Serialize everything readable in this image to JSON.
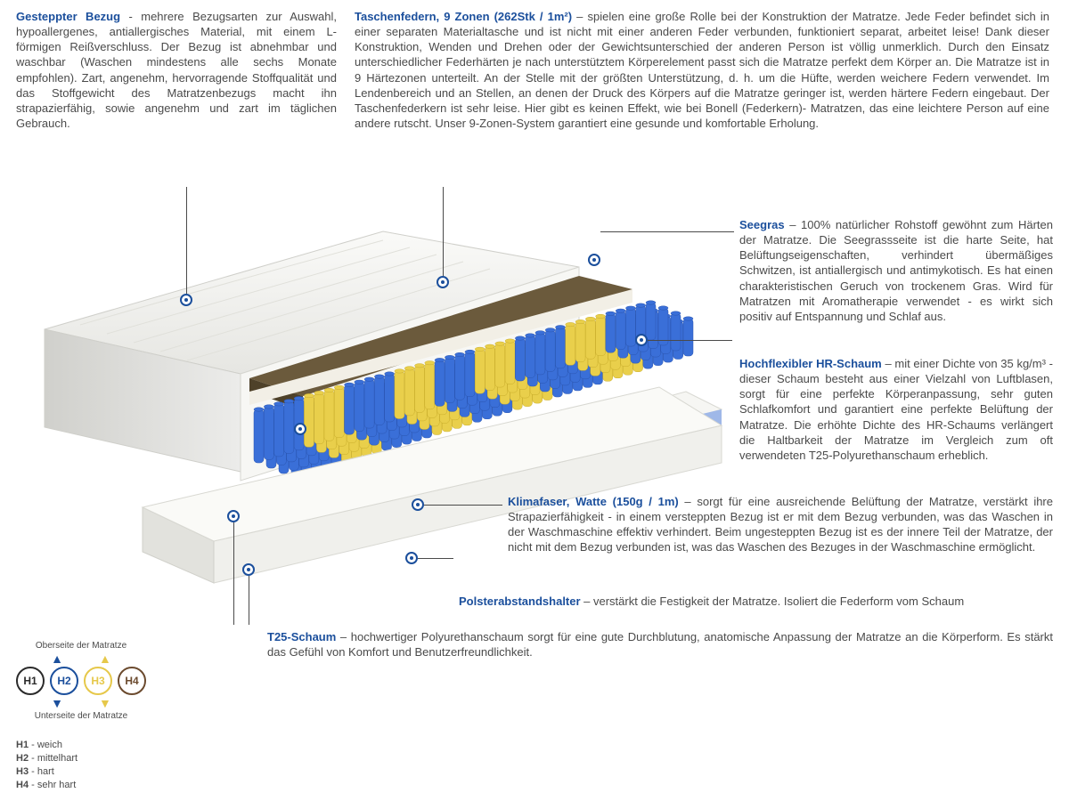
{
  "sections": {
    "cover": {
      "title": "Gesteppter Bezug",
      "text": " - mehrere Bezugsarten zur Auswahl, hypoallergenes, antiallergisches Material, mit einem L-förmigen Reißverschluss. Der Bezug ist abnehmbar und waschbar (Waschen mindestens alle sechs Monate empfohlen). Zart, angenehm, hervorragende Stoffqualität und das Stoffgewicht des Matratzenbezugs macht ihn strapazierfähig, sowie angenehm und zart im täglichen Gebrauch."
    },
    "springs": {
      "title": "Taschenfedern, 9 Zonen (262Stk / 1m²)",
      "text": " – spielen eine große Rolle bei der Konstruktion der Matratze. Jede Feder befindet sich in einer separaten Materialtasche und ist nicht mit einer anderen Feder verbunden, funktioniert separat, arbeitet leise! Dank dieser Konstruktion, Wenden und Drehen oder der Gewichtsunterschied der anderen Person ist völlig unmerklich. Durch den Einsatz unterschiedlicher Federhärten je nach unterstütztem Körperelement passt sich die Matratze perfekt dem Körper an. Die Matratze ist in 9 Härtezonen unterteilt. An der Stelle mit der größten Unterstützung, d. h. um die Hüfte, werden weichere Federn verwendet. Im Lendenbereich und an Stellen, an denen der Druck des Körpers auf die Matratze geringer ist, werden härtere Federn eingebaut. Der Taschenfederkern ist sehr leise. Hier gibt es keinen Effekt, wie bei Bonell (Federkern)- Matratzen, das eine leichtere Person auf eine andere rutscht. Unser 9-Zonen-System garantiert eine gesunde und komfortable Erholung."
    },
    "seagrass": {
      "title": "Seegras",
      "text": " – 100% natürlicher Rohstoff gewöhnt zum Härten der Matratze. Die Seegrassseite ist die harte Seite, hat Belüftungseigenschaften, verhindert übermäßiges Schwitzen, ist antiallergisch und antimykotisch. Es hat einen charakteristischen Geruch von trockenem Gras. Wird für Matratzen mit Aromatherapie verwendet - es wirkt sich positiv auf Entspannung und Schlaf aus."
    },
    "hrfoam": {
      "title": "Hochflexibler HR-Schaum",
      "text": " – mit einer Dichte von 35 kg/m³ - dieser Schaum besteht aus einer Vielzahl von Luftblasen, sorgt für eine perfekte Körperanpassung, sehr guten Schlafkomfort und garantiert eine perfekte Belüftung der Matratze. Die erhöhte Dichte des HR-Schaums verlängert die Haltbarkeit der Matratze im Vergleich zum oft verwendeten T25-Polyurethanschaum erheblich."
    },
    "klimafaser": {
      "title": "Klimafaser, Watte (150g / 1m)",
      "text": " – sorgt für eine ausreichende Belüftung der Matratze, verstärkt ihre Strapazierfähigkeit - in einem versteppten Bezug ist er mit dem Bezug verbunden, was das Waschen in der Waschmaschine effektiv verhindert. Beim ungesteppten Bezug ist es der innere Teil der Matratze, der nicht mit dem Bezug verbunden ist, was das Waschen des Bezuges in der Waschmaschine ermöglicht."
    },
    "polster": {
      "title": "Polsterabstandshalter",
      "text": " – verstärkt die Festigkeit der Matratze. Isoliert die Federform vom Schaum"
    },
    "t25": {
      "title": "T25-Schaum",
      "text": " – hochwertiger Polyurethanschaum sorgt für eine gute Durchblutung, anatomische Anpassung der Matratze an die Körperform. Es stärkt das Gefühl von Komfort und Benutzerfreundlichkeit."
    }
  },
  "legend": {
    "top_label": "Oberseite der Matratze",
    "bottom_label": "Unterseite der Matratze",
    "items": [
      {
        "code": "H1",
        "color": "#2b2b2b",
        "label": "weich"
      },
      {
        "code": "H2",
        "color": "#1b4f9c",
        "label": "mittelhart"
      },
      {
        "code": "H3",
        "color": "#e6c84a",
        "label": "hart"
      },
      {
        "code": "H4",
        "color": "#6b4a2e",
        "label": "sehr hart"
      }
    ]
  },
  "diagram": {
    "colors": {
      "cover": "#f2f2f0",
      "cover_shadow": "#d9d9d6",
      "seagrass": "#6b5a3c",
      "hrfoam": "#f4f4f0",
      "spring_blue": "#3a6fd8",
      "spring_blue_dark": "#2a55b0",
      "spring_yellow": "#e9cf4b",
      "spring_yellow_dark": "#c9ad2b",
      "base_foam": "#f5f5f2",
      "base_blue": "#9fb8e8",
      "line": "#4a4a4a",
      "accent": "#1b4f9c"
    },
    "zones": [
      "blue",
      "yellow",
      "blue",
      "yellow",
      "blue",
      "yellow",
      "blue",
      "yellow",
      "blue"
    ]
  }
}
